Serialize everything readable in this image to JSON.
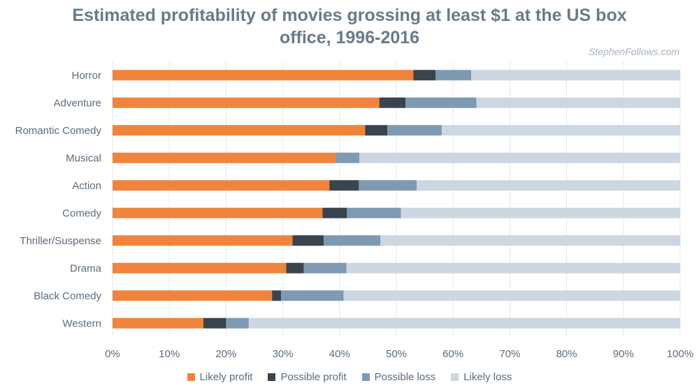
{
  "chart_data": {
    "type": "bar",
    "orientation": "horizontal",
    "stacked": true,
    "title": "Estimated profitability of movies grossing at least $1 at the US box office, 1996-2016",
    "source": "StephenFollows.com",
    "categories": [
      "Horror",
      "Adventure",
      "Romantic Comedy",
      "Musical",
      "Action",
      "Comedy",
      "Thriller/Suspense",
      "Drama",
      "Black Comedy",
      "Western"
    ],
    "series": [
      {
        "name": "Likely profit",
        "color": "#f0843c",
        "values": [
          53,
          47,
          44.5,
          39.2,
          38.2,
          37,
          31.7,
          30.6,
          28.1,
          16
        ]
      },
      {
        "name": "Possible profit",
        "color": "#3a444e",
        "values": [
          3.9,
          4.6,
          3.9,
          0,
          5.2,
          4.3,
          5.5,
          3.1,
          1.6,
          4
        ]
      },
      {
        "name": "Possible loss",
        "color": "#7e9ab3",
        "values": [
          6.3,
          12.5,
          9.6,
          4.3,
          10.2,
          9.5,
          10,
          7.5,
          11,
          4
        ]
      },
      {
        "name": "Likely loss",
        "color": "#cdd7e1",
        "values": [
          36.8,
          35.9,
          42,
          56.5,
          46.4,
          49.2,
          52.8,
          58.8,
          59.3,
          76
        ]
      }
    ],
    "x_ticks": [
      "0%",
      "10%",
      "20%",
      "30%",
      "40%",
      "50%",
      "60%",
      "70%",
      "80%",
      "90%",
      "100%"
    ],
    "xlim": [
      0,
      100
    ],
    "grid": true,
    "legend_position": "bottom"
  }
}
